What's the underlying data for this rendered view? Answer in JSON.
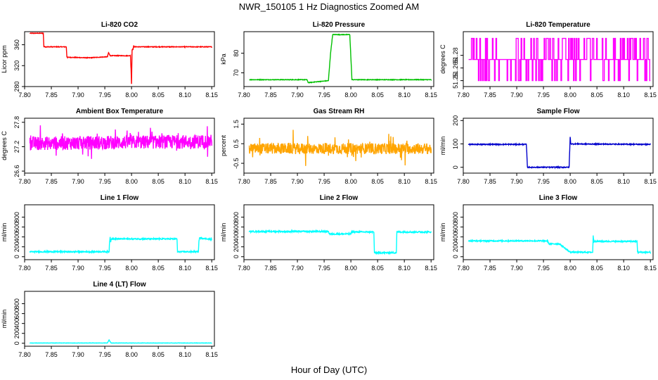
{
  "figure": {
    "title": "NWR_150105  1 Hz Diagnostics Zoomed AM",
    "xlabel": "Hour of Day (UTC)"
  },
  "chart_data": [
    {
      "type": "line",
      "id": "co2",
      "title": "Li-820 CO2",
      "ylabel": "Licor ppm",
      "color": "#ff0000",
      "xlim": [
        7.8,
        8.155
      ],
      "ylim": [
        280,
        385
      ],
      "xticks": [
        7.8,
        7.85,
        7.9,
        7.95,
        8.0,
        8.05,
        8.1,
        8.15
      ],
      "xtick_labels": [
        "7.80",
        "7.85",
        "7.90",
        "7.95",
        "8.00",
        "8.05",
        "8.10",
        "8.15"
      ],
      "yticks": [
        280,
        320,
        360
      ],
      "ytick_labels": [
        "280",
        "320",
        "360"
      ],
      "x": [
        7.81,
        7.835,
        7.836,
        7.878,
        7.879,
        7.88,
        7.92,
        7.955,
        7.957,
        7.96,
        7.998,
        7.999,
        8.0,
        8.001,
        8.003,
        8.004,
        8.005,
        8.05,
        8.1,
        8.15
      ],
      "y": [
        382,
        382,
        356,
        356,
        337,
        336,
        335,
        337,
        345,
        339,
        339,
        315,
        285,
        350,
        352,
        358,
        356,
        356,
        356,
        356
      ],
      "noise": 0.6
    },
    {
      "type": "line",
      "id": "pressure",
      "title": "Li-820 Pressure",
      "ylabel": "kPa",
      "color": "#00c000",
      "xlim": [
        7.8,
        8.155
      ],
      "ylim": [
        63,
        91
      ],
      "xticks": [
        7.8,
        7.85,
        7.9,
        7.95,
        8.0,
        8.05,
        8.1,
        8.15
      ],
      "xtick_labels": [
        "7.80",
        "7.85",
        "7.90",
        "7.95",
        "8.00",
        "8.05",
        "8.10",
        "8.15"
      ],
      "yticks": [
        70,
        80
      ],
      "ytick_labels": [
        "70",
        "80"
      ],
      "x": [
        7.81,
        7.918,
        7.92,
        7.958,
        7.962,
        7.966,
        7.998,
        8.002,
        8.15
      ],
      "y": [
        66.5,
        66.5,
        65,
        66,
        80,
        89.5,
        89.5,
        66.5,
        66.5
      ],
      "noise": 0.15
    },
    {
      "type": "line",
      "id": "temperature",
      "title": "Li-820 Temperature",
      "ylabel": "degrees C",
      "color": "#ff00ff",
      "xlim": [
        7.8,
        8.155
      ],
      "ylim": [
        51.243,
        51.308
      ],
      "xticks": [
        7.8,
        7.85,
        7.9,
        7.95,
        8.0,
        8.05,
        8.1,
        8.15
      ],
      "xtick_labels": [
        "7.80",
        "7.85",
        "7.90",
        "7.95",
        "8.00",
        "8.05",
        "8.10",
        "8.15"
      ],
      "yticks": [
        51.25,
        51.28
      ],
      "ytick_labels": [
        "51.25",
        "51.28"
      ],
      "mid_tick": 51.265,
      "mid_tick_label": "51.265",
      "levels": [
        51.25,
        51.275,
        51.3
      ],
      "x_start": 7.81,
      "x_end": 8.15
    },
    {
      "type": "line",
      "id": "ambient",
      "title": "Ambient Box Temperature",
      "ylabel": "degrees C",
      "color": "#ff00ff",
      "xlim": [
        7.8,
        8.155
      ],
      "ylim": [
        26.55,
        27.9
      ],
      "xticks": [
        7.8,
        7.85,
        7.9,
        7.95,
        8.0,
        8.05,
        8.1,
        8.15
      ],
      "xtick_labels": [
        "7.80",
        "7.85",
        "7.90",
        "7.95",
        "8.00",
        "8.05",
        "8.10",
        "8.15"
      ],
      "yticks": [
        26.6,
        27.2,
        27.8
      ],
      "ytick_labels": [
        "26.6",
        "27.2",
        "27.8"
      ],
      "x": [
        7.81,
        8.15
      ],
      "y": [
        27.28,
        27.33
      ],
      "noise": 0.17,
      "spikes": 0.33
    },
    {
      "type": "line",
      "id": "rh",
      "title": "Gas Stream RH",
      "ylabel": "percent",
      "color": "#ffa500",
      "xlim": [
        7.8,
        8.155
      ],
      "ylim": [
        -1.0,
        1.8
      ],
      "xticks": [
        7.8,
        7.85,
        7.9,
        7.95,
        8.0,
        8.05,
        8.1,
        8.15
      ],
      "xtick_labels": [
        "7.80",
        "7.85",
        "7.90",
        "7.95",
        "8.00",
        "8.05",
        "8.10",
        "8.15"
      ],
      "yticks": [
        -0.5,
        0.5,
        1.5
      ],
      "ytick_labels": [
        "-0.5",
        "0.5",
        "1.5"
      ],
      "x": [
        7.81,
        8.15
      ],
      "y": [
        0.25,
        0.25
      ],
      "noise": 0.28,
      "spikes": 0.7
    },
    {
      "type": "line",
      "id": "sample",
      "title": "Sample Flow",
      "ylabel": "ml/min",
      "color": "#0000cc",
      "xlim": [
        7.8,
        8.155
      ],
      "ylim": [
        -25,
        210
      ],
      "xticks": [
        7.8,
        7.85,
        7.9,
        7.95,
        8.0,
        8.05,
        8.1,
        8.15
      ],
      "xtick_labels": [
        "7.80",
        "7.85",
        "7.90",
        "7.95",
        "8.00",
        "8.05",
        "8.10",
        "8.15"
      ],
      "yticks": [
        0,
        100,
        200
      ],
      "ytick_labels": [
        "0",
        "100",
        "200"
      ],
      "x": [
        7.81,
        7.918,
        7.919,
        7.92,
        7.998,
        7.999,
        8.0,
        8.001,
        8.002,
        8.15
      ],
      "y": [
        98,
        98,
        50,
        0,
        0,
        70,
        130,
        100,
        100,
        98
      ],
      "noise": 2
    },
    {
      "type": "line",
      "id": "line1",
      "title": "Line 1 Flow",
      "ylabel": "ml/min",
      "color": "#00ffff",
      "xlim": [
        7.8,
        8.155
      ],
      "ylim": [
        -60,
        1050
      ],
      "xticks": [
        7.8,
        7.85,
        7.9,
        7.95,
        8.0,
        8.05,
        8.1,
        8.15
      ],
      "xtick_labels": [
        "7.80",
        "7.85",
        "7.90",
        "7.95",
        "8.00",
        "8.05",
        "8.10",
        "8.15"
      ],
      "yticks": [
        0,
        200,
        400,
        600,
        800
      ],
      "ytick_labels": [
        "0",
        "200",
        "400",
        "600",
        "800"
      ],
      "x": [
        7.81,
        7.958,
        7.959,
        7.96,
        7.961,
        7.962,
        8.085,
        8.086,
        8.125,
        8.126,
        8.127,
        8.15
      ],
      "y": [
        100,
        100,
        300,
        400,
        300,
        360,
        360,
        100,
        100,
        300,
        380,
        350
      ],
      "noise": 12
    },
    {
      "type": "line",
      "id": "line2",
      "title": "Line 2 Flow",
      "ylabel": "ml/min",
      "color": "#00ffff",
      "xlim": [
        7.8,
        8.155
      ],
      "ylim": [
        -60,
        1050
      ],
      "xticks": [
        7.8,
        7.85,
        7.9,
        7.95,
        8.0,
        8.05,
        8.1,
        8.15
      ],
      "xtick_labels": [
        "7.80",
        "7.85",
        "7.90",
        "7.95",
        "8.00",
        "8.05",
        "8.10",
        "8.15"
      ],
      "yticks": [
        0,
        200,
        400,
        600,
        800
      ],
      "ytick_labels": [
        "0",
        "200",
        "400",
        "600",
        "800"
      ],
      "x": [
        7.81,
        7.958,
        7.96,
        8.0,
        8.001,
        8.043,
        8.044,
        8.085,
        8.086,
        8.15
      ],
      "y": [
        510,
        510,
        460,
        460,
        500,
        500,
        80,
        80,
        500,
        500
      ],
      "noise": 14
    },
    {
      "type": "line",
      "id": "line3",
      "title": "Line 3 Flow",
      "ylabel": "ml/min",
      "color": "#00ffff",
      "xlim": [
        7.8,
        8.155
      ],
      "ylim": [
        -60,
        1050
      ],
      "xticks": [
        7.8,
        7.85,
        7.9,
        7.95,
        8.0,
        8.05,
        8.1,
        8.15
      ],
      "xtick_labels": [
        "7.80",
        "7.85",
        "7.90",
        "7.95",
        "8.00",
        "8.05",
        "8.10",
        "8.15"
      ],
      "yticks": [
        0,
        200,
        400,
        600,
        800
      ],
      "ytick_labels": [
        "0",
        "200",
        "400",
        "600",
        "800"
      ],
      "x": [
        7.81,
        7.958,
        7.96,
        7.98,
        8.0,
        8.001,
        8.042,
        8.043,
        8.044,
        8.125,
        8.126,
        8.15
      ],
      "y": [
        320,
        320,
        260,
        260,
        90,
        90,
        90,
        430,
        310,
        310,
        90,
        90
      ],
      "noise": 12
    },
    {
      "type": "line",
      "id": "line4",
      "title": "Line 4 (LT) Flow",
      "ylabel": "ml/min",
      "color": "#00ffff",
      "xlim": [
        7.8,
        8.155
      ],
      "ylim": [
        -60,
        1050
      ],
      "xticks": [
        7.8,
        7.85,
        7.9,
        7.95,
        8.0,
        8.05,
        8.1,
        8.15
      ],
      "xtick_labels": [
        "7.80",
        "7.85",
        "7.90",
        "7.95",
        "8.00",
        "8.05",
        "8.10",
        "8.15"
      ],
      "yticks": [
        0,
        200,
        400,
        600,
        800
      ],
      "ytick_labels": [
        "0",
        "200",
        "400",
        "600",
        "800"
      ],
      "x": [
        7.81,
        7.955,
        7.958,
        7.96,
        7.962,
        8.15
      ],
      "y": [
        5,
        5,
        70,
        30,
        5,
        5
      ],
      "noise": 3
    }
  ]
}
